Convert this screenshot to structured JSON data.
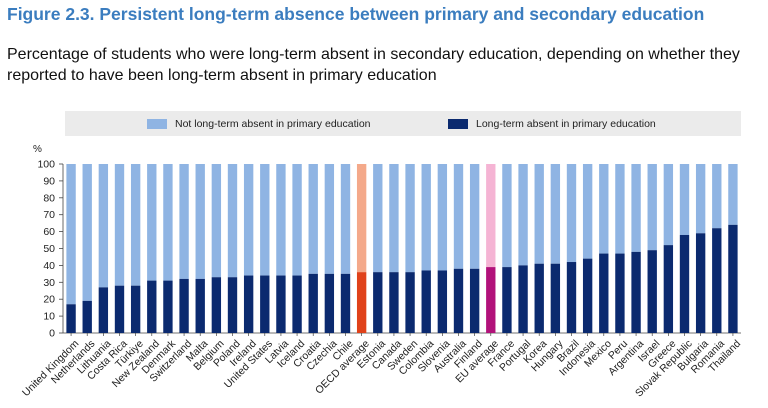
{
  "header": {
    "title": "Figure 2.3. Persistent long-term absence between primary and secondary education",
    "subtitle": "Percentage of students who were long-term absent in secondary education, depending on whether they reported to have been long-term absent in primary education"
  },
  "colors": {
    "not_absent": "#8fb4e3",
    "absent": "#0b2a6f",
    "oecd_not_absent": "#f4a98a",
    "oecd_absent": "#e0421a",
    "eu_not_absent": "#f5b4d4",
    "eu_absent": "#b2127a",
    "legend_bg": "#ebebeb"
  },
  "chart_data": {
    "type": "bar",
    "stacked": true,
    "ylabel": "%",
    "ylim": [
      0,
      100
    ],
    "yticks": [
      0,
      10,
      20,
      30,
      40,
      50,
      60,
      70,
      80,
      90,
      100
    ],
    "grid": false,
    "legend_position": "top",
    "categories": [
      "United Kingdom",
      "Netherlands",
      "Lithuania",
      "Costa Rica",
      "Türkiye",
      "New Zealand",
      "Denmark",
      "Switzerland",
      "Malta",
      "Belgium",
      "Poland",
      "Ireland",
      "United States",
      "Latvia",
      "Iceland",
      "Croatia",
      "Czechia",
      "Chile",
      "OECD average",
      "Estonia",
      "Canada",
      "Sweden",
      "Colombia",
      "Slovenia",
      "Australia",
      "Finland",
      "EU average",
      "France",
      "Portugal",
      "Korea",
      "Hungary",
      "Brazil",
      "Indonesia",
      "Mexico",
      "Peru",
      "Argentina",
      "Israel",
      "Greece",
      "Slovak Republic",
      "Bulgaria",
      "Romania",
      "Thailand"
    ],
    "highlight": {
      "OECD average": "oecd",
      "EU average": "eu"
    },
    "series": [
      {
        "name": "Long-term absent in primary education",
        "values": [
          17,
          19,
          27,
          28,
          28,
          31,
          31,
          32,
          32,
          33,
          33,
          34,
          34,
          34,
          34,
          35,
          35,
          35,
          36,
          36,
          36,
          36,
          37,
          37,
          38,
          38,
          39,
          39,
          40,
          41,
          41,
          42,
          44,
          47,
          47,
          48,
          49,
          52,
          58,
          59,
          62,
          64
        ]
      },
      {
        "name": "Not long-term absent in primary education",
        "values": [
          83,
          81,
          73,
          72,
          72,
          69,
          69,
          68,
          68,
          67,
          67,
          66,
          66,
          66,
          66,
          65,
          65,
          65,
          64,
          64,
          64,
          64,
          63,
          63,
          62,
          62,
          61,
          61,
          60,
          59,
          59,
          58,
          56,
          53,
          53,
          52,
          51,
          48,
          42,
          41,
          38,
          36
        ]
      }
    ]
  },
  "legend": {
    "not_absent_label": "Not long-term absent in primary education",
    "absent_label": "Long-term absent in primary education"
  }
}
